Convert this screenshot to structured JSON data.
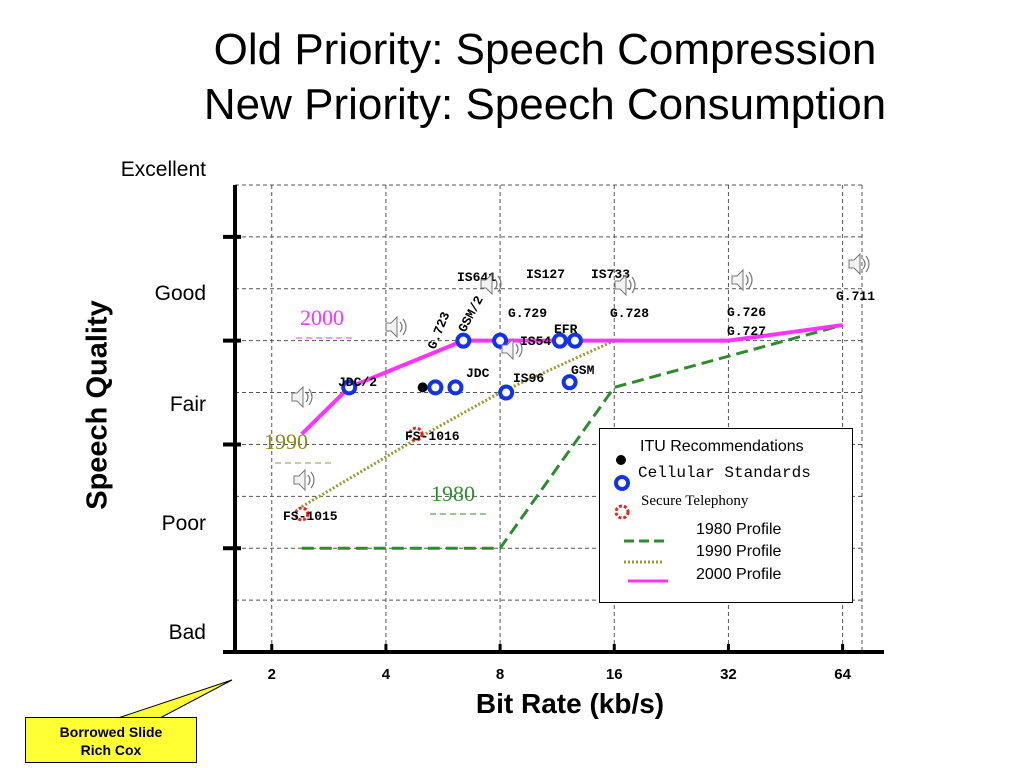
{
  "slide": {
    "title_line1": "Old Priority: Speech Compression",
    "title_line2": "New Priority: Speech Consumption",
    "callout_line1": "Borrowed Slide",
    "callout_line2": "Rich Cox"
  },
  "chart_data": {
    "type": "line",
    "xlabel": "Bit Rate (kb/s)",
    "ylabel": "Speech Quality",
    "x_scale": "log2",
    "xlim": [
      1.6,
      72
    ],
    "ylim": [
      0,
      4.5
    ],
    "x_ticks": [
      2,
      4,
      8,
      16,
      32,
      64
    ],
    "x_tick_labels": [
      "2",
      "4",
      "8",
      "16",
      "32",
      "64"
    ],
    "y_ticks": [
      {
        "value": 0,
        "label": "Bad"
      },
      {
        "value": 1,
        "label": "Poor"
      },
      {
        "value": 2,
        "label": "Fair"
      },
      {
        "value": 3,
        "label": "Good"
      },
      {
        "value": 4,
        "label": "Excellent"
      }
    ],
    "grid": true,
    "series": [
      {
        "name": "1980 Profile",
        "style": "dashed",
        "color": "#2e8b2e",
        "x": [
          2.4,
          8,
          16,
          64
        ],
        "y": [
          1.0,
          1.0,
          2.55,
          3.15
        ]
      },
      {
        "name": "1990 Profile",
        "style": "dotted",
        "color": "#9a9a35",
        "x": [
          2.4,
          4.8,
          8,
          16,
          32,
          64
        ],
        "y": [
          1.4,
          2.05,
          2.5,
          3.0,
          3.0,
          3.15
        ]
      },
      {
        "name": "2000 Profile",
        "style": "solid",
        "color": "#ff33ff",
        "x": [
          2.4,
          3.2,
          6.4,
          8,
          32,
          64
        ],
        "y": [
          2.1,
          2.55,
          3.0,
          3.0,
          3.0,
          3.15
        ]
      }
    ],
    "points": [
      {
        "label": "FS-1015",
        "kind": "secure",
        "x": 2.4,
        "y": 1.33
      },
      {
        "label": "FS-1016",
        "kind": "secure",
        "x": 4.8,
        "y": 2.1
      },
      {
        "label": "JDC/2",
        "kind": "cellular",
        "x": 3.2,
        "y": 2.55
      },
      {
        "label": "G.723",
        "kind": "itu",
        "x": 5.0,
        "y": 2.55
      },
      {
        "label": "JDC",
        "kind": "cellular",
        "x": 5.4,
        "y": 2.55
      },
      {
        "label": "",
        "kind": "cellular",
        "x": 6.1,
        "y": 2.55
      },
      {
        "label": "IS96",
        "kind": "cellular",
        "x": 8.3,
        "y": 2.5
      },
      {
        "label": "GSM",
        "kind": "cellular",
        "x": 12.2,
        "y": 2.6
      },
      {
        "label": "GSM/2",
        "kind": "cellular",
        "x": 6.4,
        "y": 3.0
      },
      {
        "label": "G.729",
        "kind": "cellular",
        "x": 8.0,
        "y": 3.0
      },
      {
        "label": "IS127",
        "kind": "cellular",
        "x": 11.5,
        "y": 3.0
      },
      {
        "label": "IS733",
        "kind": "cellular",
        "x": 12.6,
        "y": 3.0
      }
    ],
    "text_annotations": [
      "IS641",
      "IS54",
      "G.728",
      "G.726",
      "G.727",
      "G.711",
      "EFR"
    ],
    "profile_tags": [
      {
        "text": "2000",
        "color": "#ff33ff"
      },
      {
        "text": "1990",
        "color": "#8a8a20"
      },
      {
        "text": "1980",
        "color": "#2e8b2e"
      }
    ],
    "legend": [
      {
        "label": "ITU Recommendations",
        "marker": "itu"
      },
      {
        "label": "Cellular Standards",
        "marker": "cellular"
      },
      {
        "label": "Secure Telephony",
        "marker": "secure"
      },
      {
        "label": "1980 Profile",
        "line": "dashed"
      },
      {
        "label": "1990 Profile",
        "line": "dotted"
      },
      {
        "label": "2000 Profile",
        "line": "solid"
      }
    ]
  }
}
